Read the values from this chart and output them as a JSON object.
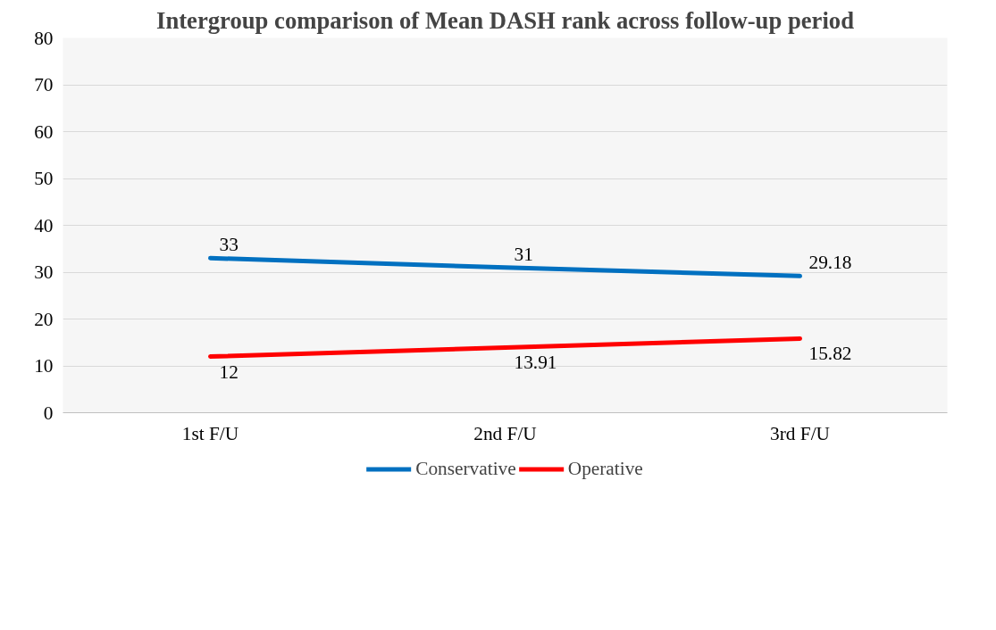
{
  "chart_data": {
    "type": "line",
    "title": "Intergroup comparison of Mean DASH rank across follow-up period",
    "categories": [
      "1st F/U",
      "2nd F/U",
      "3rd F/U"
    ],
    "series": [
      {
        "name": "Conservative",
        "color": "#0070c0",
        "values": [
          33,
          31,
          29.18
        ]
      },
      {
        "name": "Operative",
        "color": "#ff0000",
        "values": [
          12,
          13.91,
          15.82
        ]
      }
    ],
    "ylim": [
      0,
      80
    ],
    "yticks": [
      0,
      10,
      20,
      30,
      40,
      50,
      60,
      70,
      80
    ],
    "grid": "y",
    "legend": "bottom",
    "data_labels": true,
    "marker": "none",
    "line_style": "solid"
  }
}
